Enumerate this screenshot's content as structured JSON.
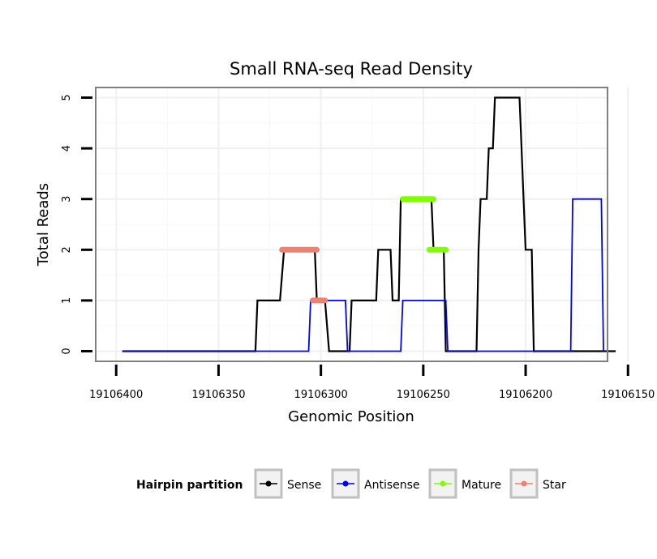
{
  "chart_data": {
    "type": "line",
    "title": "Small RNA-seq Read Density",
    "xlabel": "Genomic Position",
    "ylabel": "Total Reads",
    "xlim": [
      19106160,
      19106410
    ],
    "x_reversed": true,
    "ylim": [
      -0.2,
      5.2
    ],
    "x_ticks": [
      19106400,
      19106350,
      19106300,
      19106250,
      19106200,
      19106150
    ],
    "x_tick_labels": [
      "19106400",
      "19106350",
      "19106300",
      "19106250",
      "19106200",
      "19106150"
    ],
    "y_ticks": [
      0,
      1,
      2,
      3,
      4,
      5
    ],
    "y_tick_labels": [
      "0",
      "1",
      "2",
      "3",
      "4",
      "5"
    ],
    "grid": true,
    "legend": {
      "title": "Hairpin partition",
      "position": "bottom",
      "entries": [
        "Sense",
        "Antisense",
        "Mature",
        "Star"
      ]
    },
    "series": [
      {
        "name": "Sense",
        "color": "#000000",
        "kind": "line",
        "points": [
          [
            19106397,
            0
          ],
          [
            19106384,
            0
          ],
          [
            19106367,
            0
          ],
          [
            19106332,
            0
          ],
          [
            19106331,
            1
          ],
          [
            19106320,
            1
          ],
          [
            19106318,
            2
          ],
          [
            19106303,
            2
          ],
          [
            19106302,
            1
          ],
          [
            19106298,
            1
          ],
          [
            19106296,
            0
          ],
          [
            19106286,
            0
          ],
          [
            19106285,
            1
          ],
          [
            19106273,
            1
          ],
          [
            19106272,
            2
          ],
          [
            19106266,
            2
          ],
          [
            19106265,
            1
          ],
          [
            19106262,
            1
          ],
          [
            19106261,
            3
          ],
          [
            19106246,
            3
          ],
          [
            19106245,
            2
          ],
          [
            19106240,
            2
          ],
          [
            19106239,
            0
          ],
          [
            19106224,
            0
          ],
          [
            19106223,
            2
          ],
          [
            19106222,
            3
          ],
          [
            19106219,
            3
          ],
          [
            19106218,
            4
          ],
          [
            19106216,
            4
          ],
          [
            19106215,
            5
          ],
          [
            19106203,
            5
          ],
          [
            19106202,
            4
          ],
          [
            19106200,
            2
          ],
          [
            19106197,
            2
          ],
          [
            19106196,
            0
          ],
          [
            19106187,
            0
          ],
          [
            19106182,
            0
          ],
          [
            19106169,
            0
          ],
          [
            19106156,
            0
          ]
        ]
      },
      {
        "name": "Antisense",
        "color": "#0000FF",
        "kind": "line",
        "points": [
          [
            19106397,
            0
          ],
          [
            19106332,
            0
          ],
          [
            19106306,
            0
          ],
          [
            19106305,
            1
          ],
          [
            19106288,
            1
          ],
          [
            19106287,
            0
          ],
          [
            19106261,
            0
          ],
          [
            19106260,
            1
          ],
          [
            19106239,
            1
          ],
          [
            19106238,
            0
          ],
          [
            19106178,
            0
          ],
          [
            19106177,
            3
          ],
          [
            19106163,
            3
          ],
          [
            19106162,
            0
          ]
        ]
      },
      {
        "name": "Mature",
        "color": "#7FFF00",
        "kind": "segment",
        "segments": [
          {
            "x_start": 19106260,
            "x_end": 19106245,
            "y": 3
          },
          {
            "x_start": 19106247,
            "x_end": 19106239,
            "y": 2
          }
        ]
      },
      {
        "name": "Star",
        "color": "#F08070",
        "kind": "segment",
        "segments": [
          {
            "x_start": 19106319,
            "x_end": 19106302,
            "y": 2
          },
          {
            "x_start": 19106304,
            "x_end": 19106298,
            "y": 1
          }
        ]
      }
    ]
  }
}
